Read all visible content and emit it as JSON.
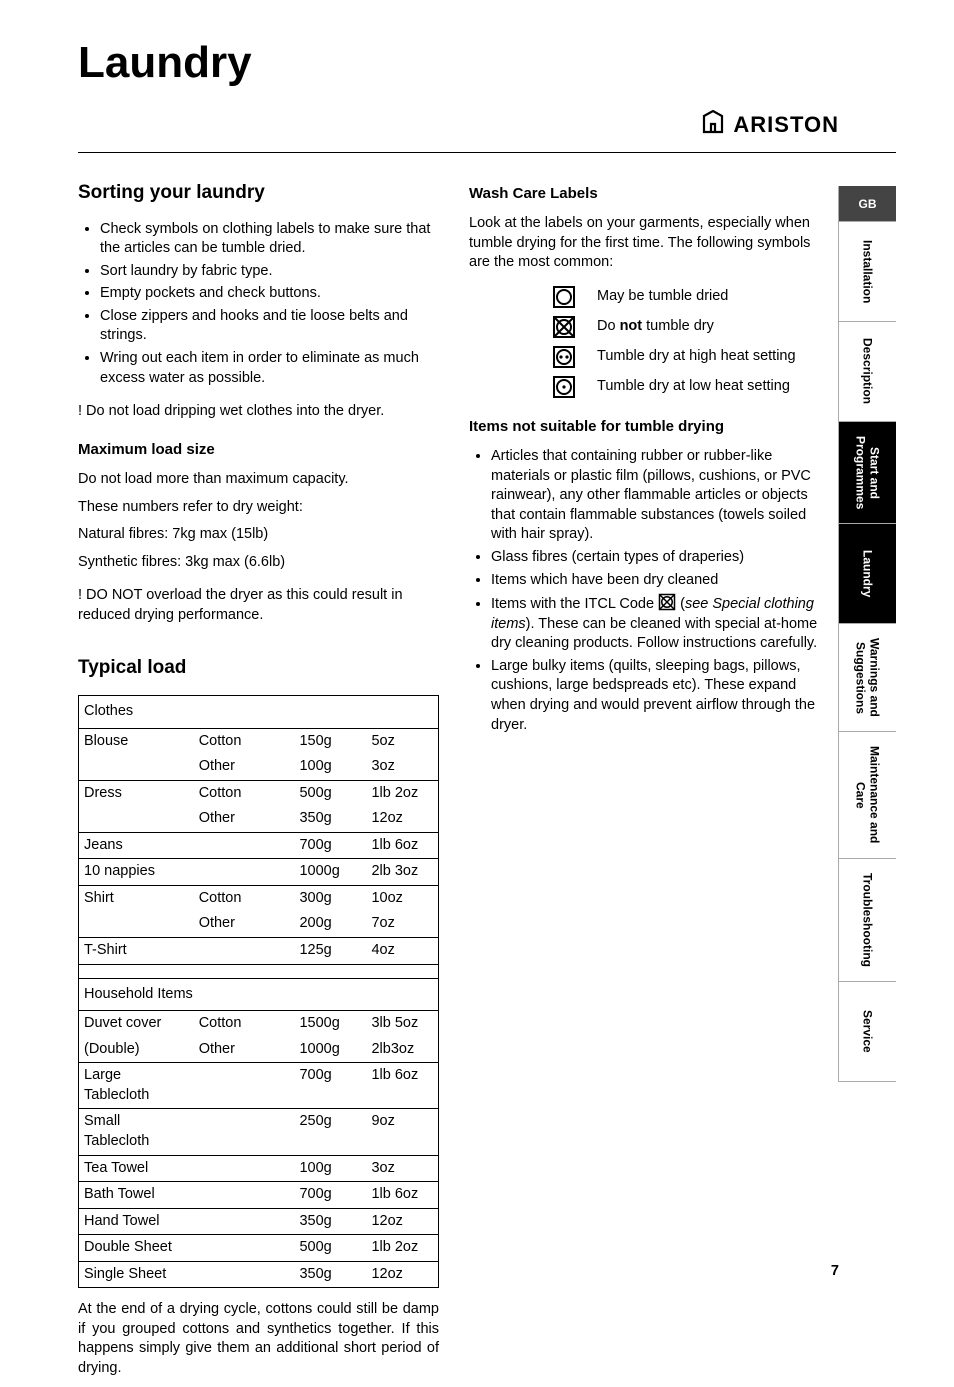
{
  "page": {
    "title": "Laundry",
    "brand": "ARISTON",
    "page_number": "7"
  },
  "tabs": {
    "gb": "GB",
    "items": [
      {
        "label": "Installation",
        "active": false
      },
      {
        "label": "Description",
        "active": false
      },
      {
        "label": "Start and\nProgrammes",
        "active": true
      },
      {
        "label": "Laundry",
        "active": true
      },
      {
        "label": "Warnings and\nSuggestions",
        "active": false
      },
      {
        "label": "Maintenance and\nCare",
        "active": false
      },
      {
        "label": "Troubleshooting",
        "active": false
      },
      {
        "label": "Service",
        "active": false
      }
    ]
  },
  "left": {
    "sorting": {
      "heading": "Sorting your laundry",
      "bullets": [
        "Check symbols on clothing labels to make sure that the articles can be tumble dried.",
        "Sort laundry by fabric type.",
        "Empty pockets and check buttons.",
        "Close zippers and hooks and tie loose belts and strings.",
        "Wring out each item in order to eliminate as much excess water as possible."
      ],
      "warn1": "! Do not load dripping wet clothes into the dryer."
    },
    "maxload": {
      "heading": "Maximum load size",
      "p1": "Do not load more than maximum capacity.",
      "p2": "These numbers refer to dry weight:",
      "p3": "Natural fibres: 7kg max (15lb)",
      "p4": "Synthetic fibres: 3kg max (6.6lb)",
      "warn": "! DO NOT overload the dryer as this could result in reduced drying performance."
    },
    "typical": {
      "heading": "Typical load",
      "cat1": "Clothes",
      "rows1": [
        {
          "item": "Blouse",
          "mat": "Cotton",
          "g": "150g",
          "oz": "5oz"
        },
        {
          "item": "",
          "mat": "Other",
          "g": "100g",
          "oz": "3oz"
        },
        {
          "item": "Dress",
          "mat": "Cotton",
          "g": "500g",
          "oz": "1lb 2oz"
        },
        {
          "item": "",
          "mat": "Other",
          "g": "350g",
          "oz": "12oz"
        },
        {
          "item": "Jeans",
          "mat": "",
          "g": "700g",
          "oz": "1lb 6oz"
        },
        {
          "item": "10 nappies",
          "mat": "",
          "g": "1000g",
          "oz": "2lb 3oz"
        },
        {
          "item": "Shirt",
          "mat": "Cotton",
          "g": "300g",
          "oz": "10oz"
        },
        {
          "item": "",
          "mat": "Other",
          "g": "200g",
          "oz": "7oz"
        },
        {
          "item": "T-Shirt",
          "mat": "",
          "g": "125g",
          "oz": "4oz"
        }
      ],
      "cat2": "Household Items",
      "rows2": [
        {
          "item": "Duvet cover",
          "mat": "Cotton",
          "g": "1500g",
          "oz": "3lb 5oz"
        },
        {
          "item": "(Double)",
          "mat": "Other",
          "g": "1000g",
          "oz": "2lb3oz"
        },
        {
          "item": "Large Tablecloth",
          "mat": "",
          "g": "700g",
          "oz": "1lb 6oz"
        },
        {
          "item": "Small Tablecloth",
          "mat": "",
          "g": "250g",
          "oz": "9oz"
        },
        {
          "item": "Tea Towel",
          "mat": "",
          "g": "100g",
          "oz": "3oz"
        },
        {
          "item": "Bath Towel",
          "mat": "",
          "g": "700g",
          "oz": "1lb 6oz"
        },
        {
          "item": "Hand Towel",
          "mat": "",
          "g": "350g",
          "oz": "12oz"
        },
        {
          "item": "Double Sheet",
          "mat": "",
          "g": "500g",
          "oz": "1lb 2oz"
        },
        {
          "item": "Single Sheet",
          "mat": "",
          "g": "350g",
          "oz": "12oz"
        }
      ],
      "note": "At the end of a drying cycle, cottons could still be damp if you grouped cottons and synthetics together. If this happens simply give them an additional short period of drying."
    }
  },
  "right": {
    "wash": {
      "heading": "Wash Care Labels",
      "intro": "Look at the labels on your garments, especially when tumble drying for the first time. The following symbols are the most common:",
      "sym1": "May be tumble dried",
      "sym2_a": "Do ",
      "sym2_b": "not",
      "sym2_c": " tumble dry",
      "sym3": "Tumble dry at high heat setting",
      "sym4": "Tumble dry at low heat setting"
    },
    "notsuitable": {
      "heading": "Items not suitable for tumble drying",
      "b1": "Articles that containing rubber or rubber-like materials or plastic film (pillows, cushions, or PVC rainwear), any other flammable articles or objects that contain flammable substances (towels soiled with hair spray).",
      "b2": "Glass fibres (certain types of draperies)",
      "b3": "Items which have been dry cleaned",
      "b4_a": "Items with the ITCL Code ",
      "b4_b": " (",
      "b4_c": "see Special clothing items",
      "b4_d": "). These can be cleaned with special at-home dry cleaning products. Follow instructions carefully.",
      "b5": "Large bulky items (quilts, sleeping bags, pillows, cushions, large bedspreads etc). These expand when drying and would prevent airflow through the dryer."
    }
  }
}
